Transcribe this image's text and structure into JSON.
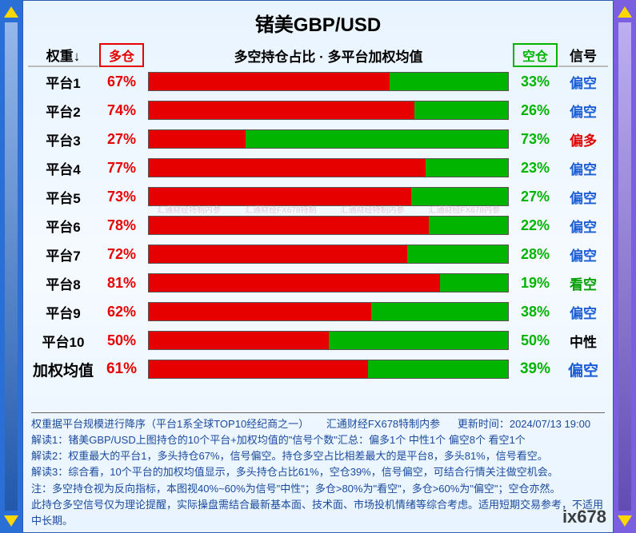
{
  "meta": {
    "title": "锗美GBP/USD",
    "subtitle": "多空持仓占比 · 多平台加权均值",
    "brand_watermark": "ix678"
  },
  "colors": {
    "long": "#e60000",
    "short": "#00b400",
    "bg_gradient_top": "#e8f4ff",
    "border_main": "#2a5bb0",
    "side_left_bg": "#2a6fd6",
    "side_right_bg": "#7a5fe0",
    "side_arrow": "#ffd700",
    "signal_short": "#1a5cd6",
    "signal_long": "#e00000",
    "signal_strong_short": "#00a000",
    "signal_neutral": "#000000",
    "footer_text": "#1a4a9e"
  },
  "headers": {
    "weight": "权重↓",
    "long": "多仓",
    "short": "空仓",
    "signal": "信号"
  },
  "rows": [
    {
      "label": "平台1",
      "long": 67,
      "short": 33,
      "signal": "偏空",
      "signal_type": "short"
    },
    {
      "label": "平台2",
      "long": 74,
      "short": 26,
      "signal": "偏空",
      "signal_type": "short"
    },
    {
      "label": "平台3",
      "long": 27,
      "short": 73,
      "signal": "偏多",
      "signal_type": "long"
    },
    {
      "label": "平台4",
      "long": 77,
      "short": 23,
      "signal": "偏空",
      "signal_type": "short"
    },
    {
      "label": "平台5",
      "long": 73,
      "short": 27,
      "signal": "偏空",
      "signal_type": "short"
    },
    {
      "label": "平台6",
      "long": 78,
      "short": 22,
      "signal": "偏空",
      "signal_type": "short"
    },
    {
      "label": "平台7",
      "long": 72,
      "short": 28,
      "signal": "偏空",
      "signal_type": "short"
    },
    {
      "label": "平台8",
      "long": 81,
      "short": 19,
      "signal": "看空",
      "signal_type": "strong_short"
    },
    {
      "label": "平台9",
      "long": 62,
      "short": 38,
      "signal": "偏空",
      "signal_type": "short"
    },
    {
      "label": "平台10",
      "long": 50,
      "short": 50,
      "signal": "中性",
      "signal_type": "neutral"
    }
  ],
  "summary": {
    "label": "加权均值",
    "long": 61,
    "short": 39,
    "signal": "偏空",
    "signal_type": "short"
  },
  "watermarks": [
    "汇通财经特制内参",
    "汇通财经FX678特制",
    "汇通财经特制内参",
    "汇通财经FX678内参"
  ],
  "footer": {
    "line1_left": "权重据平台规模进行降序（平台1系全球TOP10经纪商之一）",
    "line1_mid": "汇通财经FX678特制内参",
    "line1_right": "更新时间：2024/07/13 19:00",
    "line2": "解读1：锗美GBP/USD上图持仓的10个平台+加权均值的\"信号个数\"汇总：偏多1个 中性1个 偏空8个 看空1个",
    "line3": "解读2：权重最大的平台1，多头持仓67%，信号偏空。持仓多空占比相差最大的是平台8，多头81%，信号看空。",
    "line4": "解读3：综合看，10个平台的加权均值显示，多头持仓占比61%，空仓39%，信号偏空，可结合行情关注做空机会。",
    "line5": "注：多空持仓视为反向指标，本图视40%~60%为信号\"中性\"；多仓>80%为\"看空\"，多仓>60%为\"偏空\"；空仓亦然。",
    "line6": "此持仓多空信号仅为理论提醒，实际操盘需结合最新基本面、技术面、市场投机情绪等综合考虑。适用短期交易参考，不适用中长期。"
  }
}
